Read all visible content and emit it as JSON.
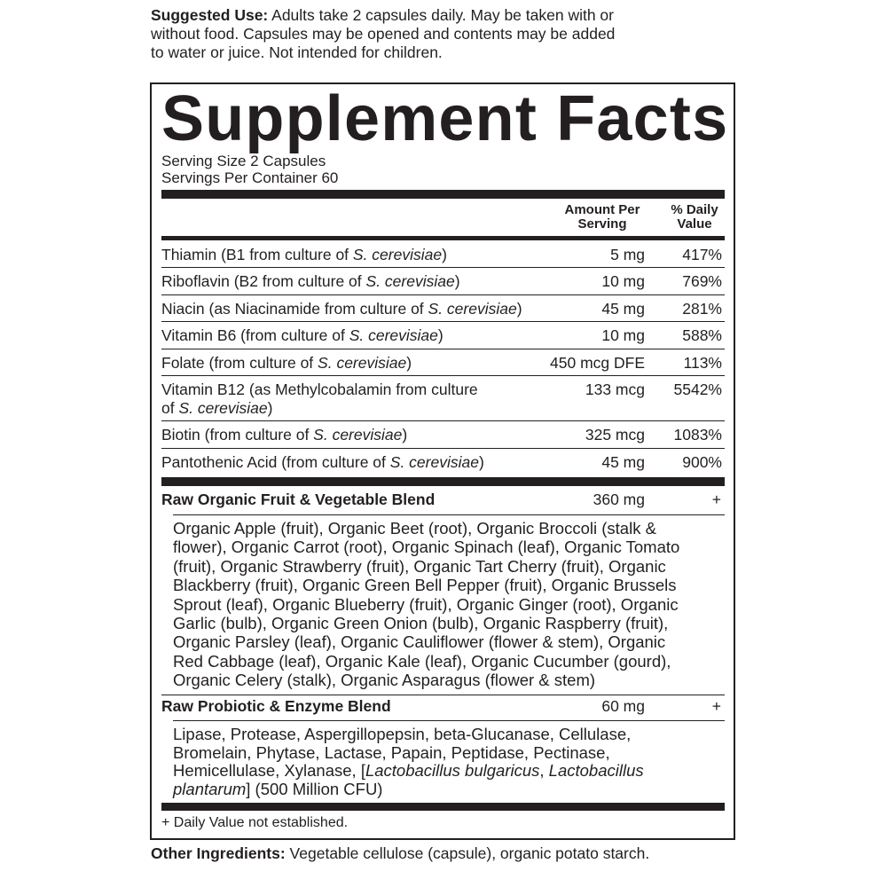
{
  "suggested_use": {
    "label": "Suggested Use:",
    "lines": [
      " Adults take 2 capsules daily. May be taken with or",
      "without food. Capsules may be opened and contents may be added",
      "to water or juice. Not intended for children."
    ]
  },
  "title": "Supplement Facts",
  "serving_size": "Serving Size 2 Capsules",
  "servings_per_container": "Servings Per Container 60",
  "headers": {
    "amount_line1": "Amount Per",
    "amount_line2": "Serving",
    "dv_line1": "% Daily",
    "dv_line2": "Value"
  },
  "nutrients": [
    {
      "pre": "Thiamin (B1 from culture of ",
      "ital": "S. cerevisiae",
      "post": ")",
      "amount": "5 mg",
      "dv": "417%"
    },
    {
      "pre": "Riboflavin (B2 from culture of ",
      "ital": "S. cerevisiae",
      "post": ")",
      "amount": "10 mg",
      "dv": "769%"
    },
    {
      "pre": "Niacin (as Niacinamide from culture of ",
      "ital": "S. cerevisiae",
      "post": ")",
      "amount": "45 mg",
      "dv": "281%"
    },
    {
      "pre": "Vitamin B6 (from culture of ",
      "ital": "S. cerevisiae",
      "post": ")",
      "amount": "10 mg",
      "dv": "588%"
    },
    {
      "pre": "Folate (from culture of ",
      "ital": "S. cerevisiae",
      "post": ")",
      "amount": "450 mcg DFE",
      "dv": "113%"
    },
    {
      "pre": "Vitamin B12 (as Methylcobalamin from culture of ",
      "ital": "S. cerevisiae",
      "post": ")",
      "amount": "133 mcg",
      "dv": "5542%"
    },
    {
      "pre": "Biotin (from culture of ",
      "ital": "S. cerevisiae",
      "post": ")",
      "amount": "325 mcg",
      "dv": "1083%"
    },
    {
      "pre": "Pantothenic Acid (from culture of ",
      "ital": "S. cerevisiae",
      "post": ")",
      "amount": "45 mg",
      "dv": "900%"
    }
  ],
  "fruit_blend": {
    "name": "Raw Organic Fruit & Vegetable Blend",
    "amount": "360 mg",
    "dv": "+",
    "lines": [
      "Organic Apple (fruit), Organic Beet (root), Organic Broccoli (stalk &",
      "flower), Organic Carrot (root), Organic Spinach (leaf), Organic Tomato",
      "(fruit), Organic Strawberry (fruit), Organic Tart Cherry (fruit), Organic",
      "Blackberry (fruit), Organic Green Bell Pepper (fruit), Organic Brussels",
      "Sprout (leaf), Organic Blueberry (fruit), Organic Ginger (root), Organic",
      "Garlic (bulb), Organic Green Onion (bulb), Organic Raspberry (fruit),",
      "Organic Parsley (leaf), Organic Cauliflower (flower & stem), Organic",
      "Red Cabbage (leaf), Organic Kale (leaf), Organic Cucumber (gourd),",
      "Organic Celery (stalk), Organic Asparagus (flower & stem)"
    ]
  },
  "probiotic_blend": {
    "name": "Raw Probiotic & Enzyme Blend",
    "amount": "60 mg",
    "dv": "+",
    "lines": [
      [
        {
          "t": "Lipase, Protease, Aspergillopepsin, beta-Glucanase, Cellulase,"
        }
      ],
      [
        {
          "t": "Bromelain, Phytase, Lactase, Papain, Peptidase, Pectinase,"
        }
      ],
      [
        {
          "t": "Hemicellulase, Xylanase, ["
        },
        {
          "t": "Lactobacillus bulgaricus",
          "i": true
        },
        {
          "t": ", "
        },
        {
          "t": "Lactobacillus",
          "i": true
        }
      ],
      [
        {
          "t": "plantarum",
          "i": true
        },
        {
          "t": "] (500 Million CFU)"
        }
      ]
    ]
  },
  "footnote": "+ Daily Value not established.",
  "other_ingredients": {
    "label": "Other Ingredients:",
    "text": " Vegetable cellulose (capsule), organic potato starch."
  }
}
